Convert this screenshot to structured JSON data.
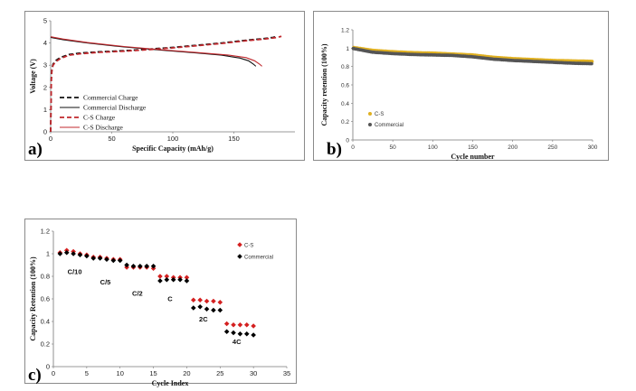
{
  "chart_data": [
    {
      "id": "a",
      "type": "line",
      "panel_label": "a)",
      "title": "",
      "xlabel": "Specific Capacity (mAh/g)",
      "ylabel": "Voltage (V)",
      "xlim": [
        0,
        200
      ],
      "ylim": [
        0,
        5
      ],
      "xticks": [
        "0",
        "50",
        "100",
        "150"
      ],
      "xtick_values": [
        0,
        50,
        100,
        150
      ],
      "yticks": [
        "0",
        "1",
        "2",
        "3",
        "4",
        "5"
      ],
      "ytick_values": [
        0,
        1,
        2,
        3,
        4,
        5
      ],
      "grid": false,
      "legend_position": "bottom-left",
      "series": [
        {
          "name": "Commercial Charge",
          "color": "#111111",
          "dash": "dashed",
          "x": [
            0,
            0.5,
            1,
            2,
            4,
            8,
            15,
            25,
            40,
            60,
            80,
            100,
            120,
            140,
            160,
            175,
            182,
            184
          ],
          "y": [
            0,
            2.4,
            2.85,
            3.05,
            3.2,
            3.35,
            3.48,
            3.55,
            3.6,
            3.65,
            3.72,
            3.8,
            3.9,
            4.0,
            4.12,
            4.2,
            4.25,
            4.28
          ]
        },
        {
          "name": "Commercial Discharge",
          "color": "#111111",
          "dash": "solid",
          "x": [
            0,
            10,
            30,
            60,
            90,
            120,
            140,
            155,
            162,
            166,
            168
          ],
          "y": [
            4.25,
            4.15,
            4.0,
            3.82,
            3.68,
            3.55,
            3.45,
            3.32,
            3.2,
            3.05,
            2.95
          ]
        },
        {
          "name": "C-S Charge",
          "color": "#c0282d",
          "dash": "dashed",
          "x": [
            0,
            0.5,
            1,
            2,
            4,
            8,
            15,
            25,
            40,
            60,
            80,
            100,
            120,
            140,
            160,
            175,
            185,
            189
          ],
          "y": [
            0,
            2.3,
            2.8,
            3.0,
            3.15,
            3.3,
            3.45,
            3.52,
            3.58,
            3.63,
            3.7,
            3.78,
            3.88,
            3.98,
            4.1,
            4.18,
            4.25,
            4.3
          ]
        },
        {
          "name": "C-S Discharge",
          "color": "#c0282d",
          "dash": "solid",
          "x": [
            0,
            10,
            30,
            60,
            90,
            120,
            145,
            160,
            167,
            171,
            173
          ],
          "y": [
            4.28,
            4.18,
            4.02,
            3.84,
            3.7,
            3.57,
            3.46,
            3.34,
            3.2,
            3.05,
            2.95
          ]
        }
      ]
    },
    {
      "id": "b",
      "type": "scatter",
      "panel_label": "b)",
      "title": "",
      "xlabel": "Cycle number",
      "ylabel": "Capacity retention (100%)",
      "xlim": [
        0,
        300
      ],
      "ylim": [
        0,
        1.2
      ],
      "xticks": [
        "0",
        "50",
        "100",
        "150",
        "200",
        "250",
        "300"
      ],
      "xtick_values": [
        0,
        50,
        100,
        150,
        200,
        250,
        300
      ],
      "yticks": [
        "0",
        "0.2",
        "0.4",
        "0.6",
        "0.8",
        "1",
        "1.2"
      ],
      "ytick_values": [
        0,
        0.2,
        0.4,
        0.6,
        0.8,
        1.0,
        1.2
      ],
      "grid": false,
      "legend_position": "bottom-left",
      "series": [
        {
          "name": "C-S",
          "color": "#e0b020",
          "x": [
            1,
            25,
            50,
            75,
            100,
            125,
            150,
            175,
            200,
            225,
            250,
            275,
            300
          ],
          "y": [
            1.0,
            0.97,
            0.955,
            0.945,
            0.94,
            0.93,
            0.92,
            0.895,
            0.88,
            0.87,
            0.86,
            0.855,
            0.85
          ]
        },
        {
          "name": "Commercial",
          "color": "#555555",
          "x": [
            1,
            25,
            50,
            75,
            100,
            125,
            150,
            175,
            200,
            225,
            250,
            275,
            300
          ],
          "y": [
            1.0,
            0.96,
            0.945,
            0.935,
            0.93,
            0.925,
            0.91,
            0.885,
            0.87,
            0.86,
            0.85,
            0.84,
            0.835
          ]
        }
      ]
    },
    {
      "id": "c",
      "type": "scatter",
      "panel_label": "c)",
      "title": "",
      "xlabel": "Cycle Index",
      "ylabel": "Capacity Retention (100%)",
      "xlim": [
        0,
        35
      ],
      "ylim": [
        0,
        1.2
      ],
      "xticks": [
        "0",
        "5",
        "10",
        "15",
        "20",
        "25",
        "30",
        "35"
      ],
      "xtick_values": [
        0,
        5,
        10,
        15,
        20,
        25,
        30,
        35
      ],
      "yticks": [
        "0",
        "0.2",
        "0.4",
        "0.6",
        "0.8",
        "1",
        "1.2"
      ],
      "ytick_values": [
        0,
        0.2,
        0.4,
        0.6,
        0.8,
        1.0,
        1.2
      ],
      "grid": false,
      "legend_position": "top-right",
      "series": [
        {
          "name": "C-S",
          "color": "#d42020",
          "x": [
            1,
            2,
            3,
            4,
            5,
            6,
            7,
            8,
            9,
            10,
            11,
            12,
            13,
            14,
            15,
            16,
            17,
            18,
            19,
            20,
            21,
            22,
            23,
            24,
            25,
            26,
            27,
            28,
            29,
            30
          ],
          "y": [
            1.01,
            1.03,
            1.02,
            1.0,
            0.99,
            0.97,
            0.97,
            0.96,
            0.95,
            0.95,
            0.88,
            0.88,
            0.88,
            0.88,
            0.87,
            0.8,
            0.8,
            0.79,
            0.79,
            0.79,
            0.59,
            0.59,
            0.58,
            0.58,
            0.57,
            0.38,
            0.37,
            0.37,
            0.37,
            0.36
          ]
        },
        {
          "name": "Commercial",
          "color": "#000000",
          "x": [
            1,
            2,
            3,
            4,
            5,
            6,
            7,
            8,
            9,
            10,
            11,
            12,
            13,
            14,
            15,
            16,
            17,
            18,
            19,
            20,
            21,
            22,
            23,
            24,
            25,
            26,
            27,
            28,
            29,
            30
          ],
          "y": [
            1.0,
            1.01,
            1.0,
            0.99,
            0.98,
            0.96,
            0.96,
            0.95,
            0.94,
            0.94,
            0.9,
            0.89,
            0.89,
            0.89,
            0.89,
            0.76,
            0.77,
            0.77,
            0.77,
            0.76,
            0.52,
            0.53,
            0.51,
            0.5,
            0.5,
            0.31,
            0.3,
            0.29,
            0.29,
            0.28
          ]
        }
      ],
      "annotations": [
        {
          "text": "C/10",
          "x": 3.2,
          "y": 0.82
        },
        {
          "text": "C/5",
          "x": 7.8,
          "y": 0.73
        },
        {
          "text": "C/2",
          "x": 12.6,
          "y": 0.63
        },
        {
          "text": "C",
          "x": 17.5,
          "y": 0.58
        },
        {
          "text": "2C",
          "x": 22.5,
          "y": 0.4
        },
        {
          "text": "4C",
          "x": 27.5,
          "y": 0.2
        }
      ]
    }
  ]
}
